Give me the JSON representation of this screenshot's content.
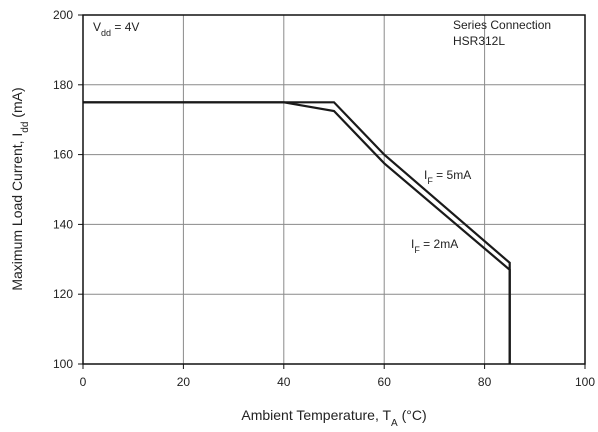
{
  "chart_data": {
    "type": "line",
    "xlabel": {
      "main": "Ambient Temperature, T",
      "sub": "A",
      "unit": " (°C)"
    },
    "ylabel": {
      "main": "Maximum Load Current, I",
      "sub": "dd",
      "unit": "  (mA)"
    },
    "xlim": [
      0,
      100
    ],
    "ylim": [
      100,
      200
    ],
    "xticks": [
      0,
      20,
      40,
      60,
      80,
      100
    ],
    "yticks": [
      100,
      120,
      140,
      160,
      180,
      200
    ],
    "grid": true,
    "colors": {
      "line": "#1a1a1a",
      "grid": "#8a8a8a",
      "frame": "#111111"
    },
    "series": [
      {
        "name": "IF = 5mA",
        "label_main": "I",
        "label_sub": "F",
        "label_rest": " = 5mA",
        "points": [
          [
            0,
            175
          ],
          [
            50,
            175
          ],
          [
            60,
            160
          ],
          [
            85,
            129
          ],
          [
            85,
            100
          ]
        ]
      },
      {
        "name": "IF = 2mA",
        "label_main": "I",
        "label_sub": "F",
        "label_rest": " = 2mA",
        "points": [
          [
            0,
            175
          ],
          [
            40,
            175
          ],
          [
            50,
            172.5
          ],
          [
            60,
            157.5
          ],
          [
            85,
            127
          ],
          [
            85,
            100
          ]
        ]
      }
    ],
    "annotations": {
      "vdd": {
        "main": "V",
        "sub": "dd",
        "rest": " = 4V"
      },
      "connection_line1": "Series Connection",
      "connection_line2": "HSR312L"
    }
  }
}
